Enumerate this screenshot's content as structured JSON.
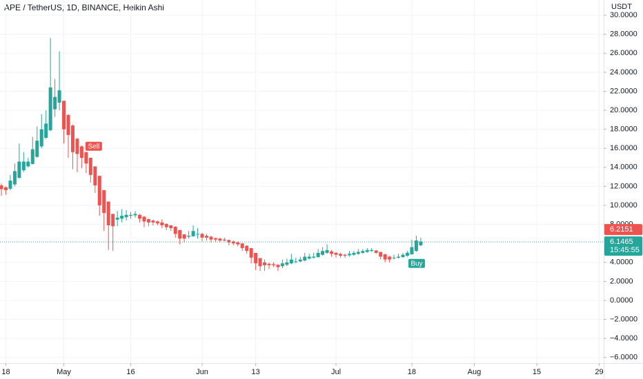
{
  "chart_data": {
    "type": "candlestick",
    "title": "APE / TetherUS, 1D, BINANCE, Heikin Ashi",
    "unit": "USDT",
    "x": [
      "04-17",
      "04-18",
      "04-19",
      "04-20",
      "04-21",
      "04-22",
      "04-23",
      "04-24",
      "04-25",
      "04-26",
      "04-27",
      "04-28",
      "04-29",
      "04-30",
      "05-01",
      "05-02",
      "05-03",
      "05-04",
      "05-05",
      "05-06",
      "05-07",
      "05-08",
      "05-09",
      "05-10",
      "05-11",
      "05-12",
      "05-13",
      "05-14",
      "05-15",
      "05-16",
      "05-17",
      "05-18",
      "05-19",
      "05-20",
      "05-21",
      "05-22",
      "05-23",
      "05-24",
      "05-25",
      "05-26",
      "05-27",
      "05-28",
      "05-29",
      "05-30",
      "05-31",
      "06-01",
      "06-02",
      "06-03",
      "06-04",
      "06-05",
      "06-06",
      "06-07",
      "06-08",
      "06-09",
      "06-10",
      "06-11",
      "06-12",
      "06-13",
      "06-14",
      "06-15",
      "06-16",
      "06-17",
      "06-18",
      "06-19",
      "06-20",
      "06-21",
      "06-22",
      "06-23",
      "06-24",
      "06-25",
      "06-26",
      "06-27",
      "06-28",
      "06-29",
      "06-30",
      "07-01",
      "07-02",
      "07-03",
      "07-04",
      "07-05",
      "07-06",
      "07-07",
      "07-08",
      "07-09",
      "07-10",
      "07-11",
      "07-12",
      "07-13",
      "07-14",
      "07-15",
      "07-16",
      "07-17",
      "07-18",
      "07-19",
      "07-20"
    ],
    "open": [
      12.1,
      11.9,
      11.75,
      12.2,
      12.9,
      13.7,
      14.1,
      14.35,
      15.1,
      16.2,
      17.1,
      17.9,
      20.1,
      20.8,
      21.0,
      19.5,
      18.4,
      17.0,
      16.2,
      15.6,
      15.0,
      14.1,
      13.1,
      11.6,
      10.4,
      9.1,
      8.5,
      8.6,
      8.75,
      8.9,
      8.95,
      9.0,
      8.8,
      8.55,
      8.4,
      8.3,
      8.2,
      8.05,
      7.9,
      7.75,
      7.4,
      6.95,
      6.7,
      6.75,
      7.0,
      7.0,
      6.8,
      6.7,
      6.55,
      6.5,
      6.4,
      6.35,
      6.2,
      6.1,
      6.0,
      5.75,
      5.5,
      5.0,
      4.45,
      4.0,
      3.85,
      3.8,
      3.75,
      3.6,
      3.75,
      3.9,
      4.1,
      4.1,
      4.2,
      4.4,
      4.5,
      4.55,
      4.8,
      5.0,
      5.15,
      5.0,
      4.9,
      4.8,
      4.75,
      4.8,
      4.9,
      5.0,
      5.1,
      5.2,
      5.25,
      5.1,
      4.85,
      4.6,
      4.45,
      4.5,
      4.55,
      4.7,
      4.85,
      5.2,
      5.8
    ],
    "high": [
      12.3,
      12.0,
      13.2,
      14.4,
      16.5,
      15.6,
      15.0,
      17.2,
      18.3,
      19.6,
      20.0,
      27.6,
      23.3,
      26.2,
      21.0,
      19.6,
      18.5,
      17.1,
      16.3,
      15.6,
      15.0,
      14.1,
      13.1,
      11.6,
      10.4,
      9.1,
      9.4,
      9.6,
      9.5,
      9.3,
      9.4,
      9.1,
      8.9,
      8.6,
      8.5,
      8.4,
      8.5,
      8.1,
      7.9,
      7.8,
      7.4,
      6.95,
      7.3,
      7.9,
      7.6,
      7.1,
      7.0,
      6.8,
      6.6,
      6.6,
      6.6,
      6.4,
      6.3,
      6.2,
      6.0,
      5.8,
      5.5,
      5.0,
      4.45,
      4.3,
      4.0,
      4.0,
      3.8,
      4.3,
      4.4,
      4.9,
      4.5,
      4.6,
      5.0,
      4.9,
      5.0,
      5.4,
      5.6,
      5.9,
      5.3,
      5.1,
      5.0,
      4.9,
      5.2,
      5.2,
      5.4,
      5.4,
      5.5,
      5.5,
      5.3,
      5.1,
      4.9,
      4.7,
      4.8,
      4.9,
      5.0,
      5.2,
      6.4,
      6.8,
      6.6
    ],
    "low": [
      11.0,
      11.1,
      11.6,
      12.0,
      12.8,
      13.5,
      14.0,
      14.3,
      15.0,
      16.0,
      17.0,
      17.8,
      19.3,
      20.0,
      16.5,
      15.0,
      13.8,
      13.5,
      13.9,
      13.4,
      12.4,
      11.3,
      8.9,
      7.3,
      5.3,
      5.2,
      7.8,
      8.2,
      8.4,
      8.6,
      8.7,
      8.2,
      7.7,
      7.8,
      7.9,
      7.9,
      7.6,
      7.4,
      7.3,
      6.6,
      5.9,
      6.1,
      6.5,
      6.7,
      6.5,
      6.2,
      6.3,
      6.1,
      6.2,
      6.1,
      6.2,
      5.8,
      5.8,
      5.7,
      5.2,
      4.9,
      3.9,
      3.2,
      3.1,
      3.1,
      3.3,
      3.5,
      3.1,
      3.4,
      3.6,
      3.8,
      3.9,
      4.0,
      4.1,
      4.3,
      4.4,
      4.5,
      4.7,
      4.9,
      4.6,
      4.5,
      4.5,
      4.5,
      4.6,
      4.7,
      4.8,
      4.9,
      5.0,
      5.1,
      4.9,
      4.3,
      4.0,
      4.0,
      4.3,
      4.4,
      4.5,
      4.6,
      4.8,
      5.1,
      5.7
    ],
    "close": [
      11.7,
      11.6,
      12.6,
      13.6,
      14.6,
      14.6,
      14.6,
      15.9,
      16.8,
      18.0,
      18.6,
      22.4,
      21.4,
      22.1,
      18.0,
      17.4,
      15.6,
      15.4,
      15.0,
      14.4,
      13.2,
      12.1,
      10.0,
      9.2,
      7.9,
      7.8,
      8.7,
      8.9,
      9.0,
      9.0,
      9.1,
      8.6,
      8.3,
      8.2,
      8.2,
      8.1,
      7.9,
      7.7,
      7.6,
      7.0,
      6.5,
      6.5,
      6.8,
      7.3,
      7.0,
      6.6,
      6.6,
      6.4,
      6.4,
      6.3,
      6.3,
      6.1,
      6.0,
      5.9,
      5.5,
      5.2,
      4.5,
      3.9,
      3.6,
      3.7,
      3.7,
      3.7,
      3.5,
      3.9,
      4.0,
      4.3,
      4.1,
      4.3,
      4.6,
      4.6,
      4.6,
      5.0,
      5.2,
      5.3,
      4.9,
      4.8,
      4.7,
      4.7,
      4.9,
      5.0,
      5.1,
      5.2,
      5.3,
      5.3,
      5.0,
      4.6,
      4.3,
      4.3,
      4.5,
      4.6,
      4.8,
      5.0,
      5.6,
      6.3,
      6.2
    ],
    "up_color": "#26a69a",
    "down_color": "#ef5350",
    "xlim": [
      "04-17",
      "08-30"
    ],
    "xticks": [
      {
        "value": "04-18",
        "label": "18"
      },
      {
        "value": "05-01",
        "label": "May"
      },
      {
        "value": "05-16",
        "label": "16"
      },
      {
        "value": "06-01",
        "label": "Jun"
      },
      {
        "value": "06-13",
        "label": "13"
      },
      {
        "value": "07-01",
        "label": "Jul"
      },
      {
        "value": "07-18",
        "label": "18"
      },
      {
        "value": "08-01",
        "label": "Aug"
      },
      {
        "value": "08-15",
        "label": "15"
      },
      {
        "value": "08-29",
        "label": "29"
      }
    ],
    "ylim": [
      -6.6,
      31.6
    ],
    "yticks": [
      {
        "value": 30,
        "label": "30.0000"
      },
      {
        "value": 28,
        "label": "28.0000"
      },
      {
        "value": 26,
        "label": "26.0000"
      },
      {
        "value": 24,
        "label": "24.0000"
      },
      {
        "value": 22,
        "label": "22.0000"
      },
      {
        "value": 20,
        "label": "20.0000"
      },
      {
        "value": 18,
        "label": "18.0000"
      },
      {
        "value": 16,
        "label": "16.0000"
      },
      {
        "value": 14,
        "label": "14.0000"
      },
      {
        "value": 12,
        "label": "12.0000"
      },
      {
        "value": 10,
        "label": "10.0000"
      },
      {
        "value": 8,
        "label": "8.0000"
      },
      {
        "value": 4,
        "label": "4.0000"
      },
      {
        "value": 2,
        "label": "2.0000"
      },
      {
        "value": 0,
        "label": "0.0000"
      },
      {
        "value": -2,
        "label": "−2.0000"
      },
      {
        "value": -4,
        "label": "−4.0000"
      },
      {
        "value": -6,
        "label": "−6.0000"
      }
    ],
    "grid": true,
    "annotations": [
      {
        "text": "Sell",
        "x": "05-06",
        "color": "#ef5350",
        "position": "above"
      },
      {
        "text": "Buy",
        "x": "07-18",
        "color": "#26a69a",
        "position": "below"
      }
    ],
    "price_labels": [
      {
        "value": 6.2151,
        "color": "#ef5350"
      },
      {
        "value": 6.1465,
        "color": "#26a69a",
        "countdown": "15:45:55"
      }
    ]
  }
}
